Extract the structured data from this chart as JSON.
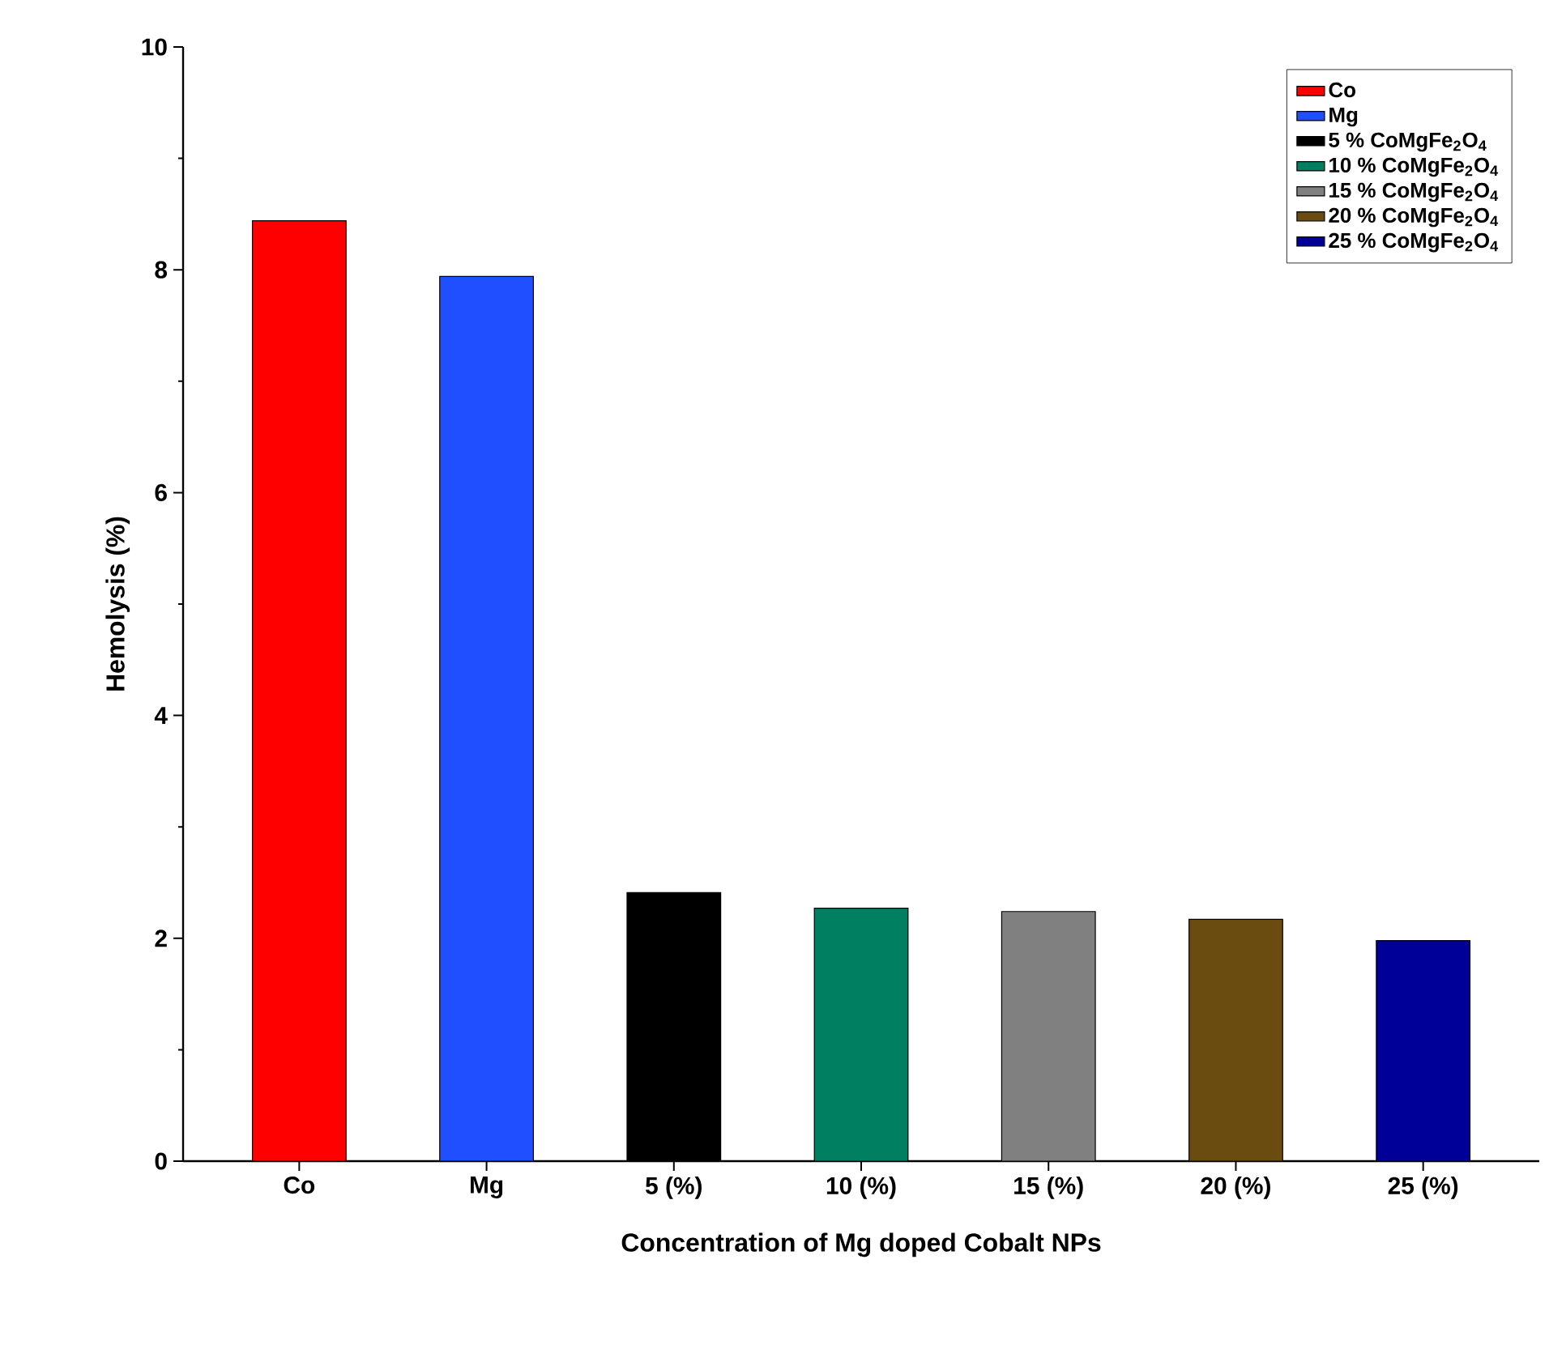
{
  "chart_data": {
    "type": "bar",
    "xlabel": "Concentration of Mg doped Cobalt NPs",
    "ylabel": "Hemolysis (%)",
    "categories": [
      "Co",
      "Mg",
      "5 (%)",
      "10 (%)",
      "15 (%)",
      "20 (%)",
      "25 (%)"
    ],
    "series": [
      {
        "name": "Co",
        "color": "#ff0000",
        "values": [
          8.44,
          null,
          null,
          null,
          null,
          null,
          null
        ]
      },
      {
        "name": "Mg",
        "color": "#1f4fff",
        "values": [
          null,
          7.94,
          null,
          null,
          null,
          null,
          null
        ]
      },
      {
        "name": "5   % CoMgFe$_{2}$O$_{4}$",
        "color": "#000000",
        "values": [
          null,
          null,
          2.41,
          null,
          null,
          null,
          null
        ]
      },
      {
        "name": "10 % CoMgFe$_{2}$O$_{4}$",
        "color": "#008060",
        "values": [
          null,
          null,
          null,
          2.27,
          null,
          null,
          null
        ]
      },
      {
        "name": "15 % CoMgFe$_{2}$O$_{4}$",
        "color": "#808080",
        "values": [
          null,
          null,
          null,
          null,
          2.24,
          null,
          null
        ]
      },
      {
        "name": "20 % CoMgFe$_{2}$O$_{4}$",
        "color": "#6b4c10",
        "values": [
          null,
          null,
          null,
          null,
          null,
          2.17,
          null
        ]
      },
      {
        "name": "25 % CoMgFe$_{2}$O$_{4}$",
        "color": "#000099",
        "values": [
          null,
          null,
          null,
          null,
          null,
          null,
          1.98
        ]
      }
    ],
    "ylim": [
      0,
      10
    ],
    "yticks": [
      0,
      2,
      4,
      6,
      8,
      10
    ],
    "legend": "top right",
    "grid": false
  }
}
